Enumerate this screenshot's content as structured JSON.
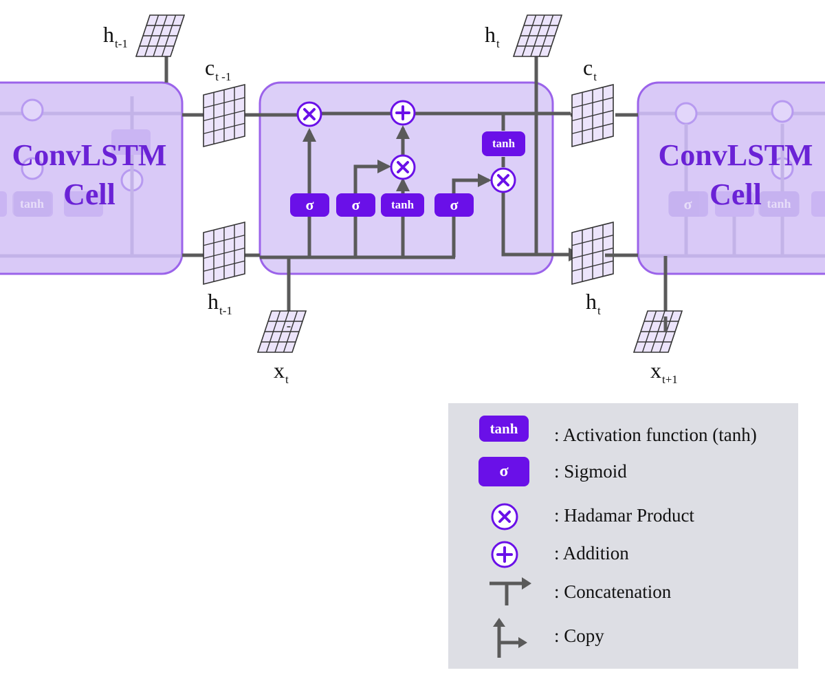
{
  "colors": {
    "accent": "#6a10e8",
    "cell_fill": "#dccff8",
    "cell_border": "#9b63ea",
    "ghost_fill": "#d9c9f7",
    "line": "#5a5a5a",
    "legend_bg": "#dddee4",
    "title": "#6a22d6"
  },
  "cells": {
    "left_title": "ConvLSTM",
    "left_subtitle": "Cell",
    "right_title": "ConvLSTM",
    "right_subtitle": "Cell"
  },
  "labels": {
    "h_prev_top": {
      "main": "h",
      "sub": "t-1"
    },
    "c_prev": {
      "main": "c",
      "sub": "t -1"
    },
    "h_prev_bottom": {
      "main": "h",
      "sub": "t-1"
    },
    "x_t": {
      "main": "x",
      "sub": "t"
    },
    "h_t_top": {
      "main": "h",
      "sub": "t"
    },
    "c_t": {
      "main": "c",
      "sub": "t"
    },
    "h_t_bottom": {
      "main": "h",
      "sub": "t"
    },
    "x_next": {
      "main": "x",
      "sub": "t+1"
    }
  },
  "ops": {
    "sigma": "σ",
    "tanh": "tanh",
    "times": "×",
    "plus": "+"
  },
  "legend": {
    "items": [
      {
        "symbol": "tanh-box",
        "text": ": Activation function (tanh)"
      },
      {
        "symbol": "sigmoid-box",
        "text": ": Sigmoid"
      },
      {
        "symbol": "hadamard-circle",
        "text": ": Hadamar Product"
      },
      {
        "symbol": "addition-circle",
        "text": ": Addition"
      },
      {
        "symbol": "concatenation-arrow",
        "text": ": Concatenation"
      },
      {
        "symbol": "copy-arrow",
        "text": ": Copy"
      }
    ],
    "tanh_label": "tanh",
    "sigma_label": "σ"
  },
  "icons": [
    "feature-grid-icon",
    "multiply-circle-icon",
    "plus-circle-icon",
    "concatenation-icon",
    "copy-icon"
  ]
}
